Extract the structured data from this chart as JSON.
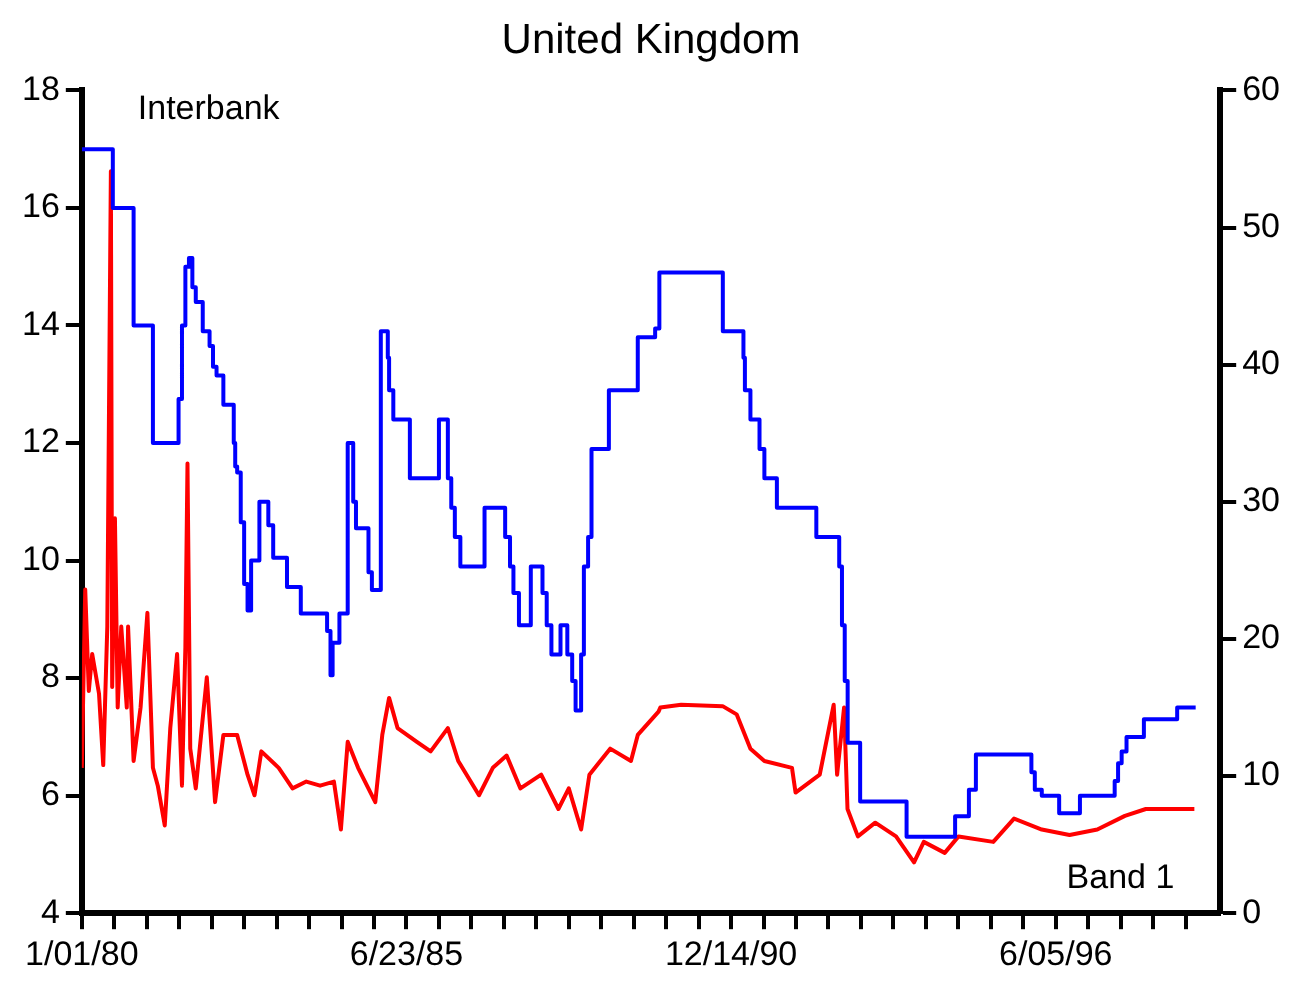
{
  "chart_data": {
    "type": "line",
    "title": "United Kingdom",
    "xlim": [
      "1980-01-01",
      "1999-03-15"
    ],
    "xticks": [
      {
        "value": "1980-01-01",
        "label": "1/01/80"
      },
      {
        "value": "1980-07-19",
        "label": null
      },
      {
        "value": "1981-02-04",
        "label": null
      },
      {
        "value": "1981-08-23",
        "label": null
      },
      {
        "value": "1982-03-11",
        "label": null
      },
      {
        "value": "1982-09-27",
        "label": null
      },
      {
        "value": "1983-04-15",
        "label": null
      },
      {
        "value": "1983-11-01",
        "label": null
      },
      {
        "value": "1984-05-19",
        "label": null
      },
      {
        "value": "1984-12-05",
        "label": null
      },
      {
        "value": "1985-06-23",
        "label": "6/23/85"
      },
      {
        "value": "1986-01-09",
        "label": null
      },
      {
        "value": "1986-07-28",
        "label": null
      },
      {
        "value": "1987-02-13",
        "label": null
      },
      {
        "value": "1987-09-01",
        "label": null
      },
      {
        "value": "1988-03-19",
        "label": null
      },
      {
        "value": "1988-10-05",
        "label": null
      },
      {
        "value": "1989-04-23",
        "label": null
      },
      {
        "value": "1989-11-09",
        "label": null
      },
      {
        "value": "1990-05-28",
        "label": null
      },
      {
        "value": "1990-12-14",
        "label": "12/14/90"
      },
      {
        "value": "1991-07-02",
        "label": null
      },
      {
        "value": "1992-01-18",
        "label": null
      },
      {
        "value": "1992-08-05",
        "label": null
      },
      {
        "value": "1993-02-21",
        "label": null
      },
      {
        "value": "1993-09-09",
        "label": null
      },
      {
        "value": "1994-03-28",
        "label": null
      },
      {
        "value": "1994-10-14",
        "label": null
      },
      {
        "value": "1995-05-02",
        "label": null
      },
      {
        "value": "1995-11-18",
        "label": null
      },
      {
        "value": "1996-06-05",
        "label": "6/05/96"
      },
      {
        "value": "1996-12-22",
        "label": null
      },
      {
        "value": "1997-07-10",
        "label": null
      },
      {
        "value": "1998-01-26",
        "label": null
      },
      {
        "value": "1998-08-14",
        "label": null
      }
    ],
    "ylim": [
      4,
      18
    ],
    "yticks": [
      4,
      6,
      8,
      10,
      12,
      14,
      16,
      18
    ],
    "y2lim": [
      0,
      60
    ],
    "y2ticks": [
      0,
      10,
      20,
      30,
      40,
      50,
      60
    ],
    "grid": false,
    "legend": false,
    "marker": "none",
    "line_style": "solid",
    "series": [
      {
        "name": "Interbank",
        "type": "step",
        "color": "#0000ff",
        "x": [
          "1980-01-01",
          "1980-07-10",
          "1980-11-15",
          "1981-03-14",
          "1981-08-19",
          "1981-09-09",
          "1981-09-30",
          "1981-10-22",
          "1981-11-12",
          "1981-12-03",
          "1982-01-15",
          "1982-02-26",
          "1982-03-19",
          "1982-04-10",
          "1982-05-22",
          "1982-07-25",
          "1982-08-03",
          "1982-08-15",
          "1982-09-06",
          "1982-09-27",
          "1982-10-18",
          "1982-11-09",
          "1982-12-30",
          "1983-02-23",
          "1983-03-25",
          "1983-06-18",
          "1983-09-11",
          "1984-02-20",
          "1984-03-12",
          "1984-03-25",
          "1984-05-06",
          "1984-06-26",
          "1984-07-30",
          "1984-08-16",
          "1984-11-01",
          "1984-11-22",
          "1985-01-16",
          "1985-02-28",
          "1985-03-08",
          "1985-04-03",
          "1985-07-14",
          "1986-01-09",
          "1986-03-05",
          "1986-03-26",
          "1986-04-17",
          "1986-05-21",
          "1986-10-17",
          "1987-02-21",
          "1987-03-23",
          "1987-04-13",
          "1987-05-17",
          "1987-07-29",
          "1987-10-09",
          "1987-11-04",
          "1987-12-03",
          "1988-01-28",
          "1988-03-10",
          "1988-04-09",
          "1988-04-30",
          "1988-06-03",
          "1988-06-20",
          "1988-07-16",
          "1988-08-06",
          "1988-11-21",
          "1989-05-18",
          "1989-09-02",
          "1989-09-28",
          "1990-10-24",
          "1991-02-28",
          "1991-03-09",
          "1991-04-12",
          "1991-06-07",
          "1991-07-07",
          "1991-09-22",
          "1992-05-22",
          "1992-10-10",
          "1992-10-27",
          "1992-11-13",
          "1992-12-01",
          "1993-02-16",
          "1993-11-29",
          "1994-09-24",
          "1994-12-18",
          "1995-01-30",
          "1996-01-07",
          "1996-01-28",
          "1996-03-11",
          "1996-06-26",
          "1996-11-01",
          "1997-06-03",
          "1997-06-24",
          "1997-07-16",
          "1997-08-15",
          "1997-11-30",
          "1998-06-23",
          "1998-10-15"
        ],
        "values": [
          17,
          16,
          14,
          12,
          12.75,
          14,
          15,
          15.15,
          14.65,
          14.4,
          13.9,
          13.65,
          13.3,
          13.15,
          12.65,
          12,
          11.6,
          11.5,
          10.65,
          9.6,
          9.15,
          10,
          11,
          10.6,
          10.05,
          9.55,
          9.1,
          8.8,
          8.05,
          8.6,
          9.1,
          12,
          11,
          10.55,
          9.8,
          9.5,
          13.9,
          13.45,
          12.9,
          12.4,
          11.4,
          12.4,
          11.4,
          10.9,
          10.4,
          9.9,
          10.9,
          10.4,
          9.9,
          9.45,
          8.9,
          9.9,
          9.45,
          8.9,
          8.4,
          8.9,
          8.4,
          7.95,
          7.45,
          8.4,
          9.9,
          10.4,
          11.9,
          12.9,
          13.8,
          13.95,
          14.9,
          13.9,
          13.45,
          12.9,
          12.4,
          11.9,
          11.4,
          10.9,
          10.4,
          9.9,
          8.9,
          7.95,
          6.9,
          5.9,
          5.3,
          5.65,
          6.1,
          6.7,
          6.4,
          6.1,
          6,
          5.7,
          6,
          6.25,
          6.55,
          6.75,
          7,
          7.3,
          7.5,
          7.5
        ]
      },
      {
        "name": "Band 1",
        "axis": "y2",
        "color": "#ff0000",
        "x": [
          "1980-01-01",
          "1980-01-22",
          "1980-02-13",
          "1980-03-05",
          "1980-04-16",
          "1980-05-12",
          "1980-06-06",
          "1980-06-28",
          "1980-07-06",
          "1980-07-23",
          "1980-08-09",
          "1980-08-31",
          "1980-10-04",
          "1980-10-12",
          "1980-11-15",
          "1980-12-28",
          "1981-02-08",
          "1981-03-14",
          "1981-04-13",
          "1981-05-26",
          "1981-06-29",
          "1981-08-10",
          "1981-09-09",
          "1981-09-30",
          "1981-10-13",
          "1981-10-30",
          "1981-12-03",
          "1982-02-09",
          "1982-04-01",
          "1982-05-22",
          "1982-08-15",
          "1982-10-18",
          "1982-11-30",
          "1983-01-11",
          "1983-04-28",
          "1983-07-22",
          "1983-10-15",
          "1984-01-08",
          "1984-04-02",
          "1984-05-15",
          "1984-06-26",
          "1984-08-29",
          "1984-12-13",
          "1985-01-25",
          "1985-03-08",
          "1985-04-29",
          "1985-08-26",
          "1985-11-19",
          "1986-03-05",
          "1986-05-08",
          "1986-09-13",
          "1986-12-07",
          "1987-03-02",
          "1987-05-26",
          "1987-10-01",
          "1988-01-15",
          "1988-03-19",
          "1988-06-03",
          "1988-07-24",
          "1988-11-29",
          "1989-04-06",
          "1989-05-18",
          "1989-09-23",
          "1989-10-04",
          "1990-02-09",
          "1990-10-23",
          "1991-01-17",
          "1991-04-12",
          "1991-07-07",
          "1991-12-24",
          "1992-01-15",
          "1992-06-12",
          "1992-09-06",
          "1992-09-27",
          "1992-11-09",
          "1992-11-30",
          "1993-02-02",
          "1993-05-20",
          "1993-09-25",
          "1994-01-14",
          "1994-03-15",
          "1994-07-22",
          "1994-10-15",
          "1995-05-17",
          "1995-09-22",
          "1996-03-11",
          "1996-08-29",
          "1997-02-16",
          "1997-08-05",
          "1997-12-12",
          "1998-04-19",
          "1998-10-07"
        ],
        "values": [
          10.6,
          23.6,
          16.2,
          18.9,
          16,
          10.8,
          20.9,
          54.1,
          16.5,
          28.8,
          15,
          20.9,
          15,
          20.9,
          11.1,
          15,
          21.9,
          10.6,
          9.3,
          6.4,
          13.5,
          18.9,
          9.3,
          19.4,
          32.8,
          12,
          9.1,
          17.2,
          8.1,
          13,
          13,
          10.1,
          8.6,
          11.8,
          10.6,
          9.1,
          9.6,
          9.3,
          9.6,
          6.1,
          12.5,
          10.6,
          8.1,
          13,
          15.7,
          13.5,
          12.5,
          11.8,
          13.5,
          11.1,
          8.6,
          10.6,
          11.5,
          9.1,
          10.1,
          7.6,
          9.1,
          6.1,
          10.1,
          12,
          11.1,
          13,
          14.7,
          15,
          15.2,
          15.1,
          14.5,
          12,
          11.1,
          10.6,
          8.8,
          10.1,
          15.2,
          10.1,
          15,
          7.6,
          5.6,
          6.6,
          5.6,
          3.7,
          5.2,
          4.4,
          5.6,
          5.2,
          6.9,
          6.1,
          5.7,
          6.1,
          7.1,
          7.6,
          7.6,
          7.6
        ]
      }
    ]
  }
}
